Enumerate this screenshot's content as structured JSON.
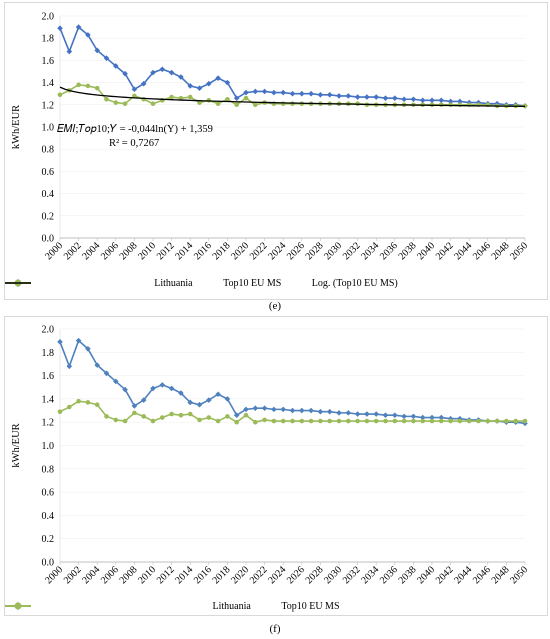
{
  "chart_data": [
    {
      "type": "line",
      "panel_id": "e",
      "title": "",
      "xlabel": "",
      "ylabel": "kWh/EUR",
      "ylim": [
        0.0,
        2.0
      ],
      "y_ticks": [
        "0.0",
        "0.2",
        "0.4",
        "0.6",
        "0.8",
        "1.0",
        "1.2",
        "1.4",
        "1.6",
        "1.8",
        "2.0"
      ],
      "x_tick_labels": [
        "2000",
        "2002",
        "2004",
        "2006",
        "2008",
        "2010",
        "2012",
        "2014",
        "2016",
        "2018",
        "2020",
        "2022",
        "2024",
        "2026",
        "2028",
        "2030",
        "2032",
        "2034",
        "2036",
        "2038",
        "2040",
        "2042",
        "2044",
        "2046",
        "2048",
        "2050"
      ],
      "x": [
        2000,
        2001,
        2002,
        2003,
        2004,
        2005,
        2006,
        2007,
        2008,
        2009,
        2010,
        2011,
        2012,
        2013,
        2014,
        2015,
        2016,
        2017,
        2018,
        2019,
        2020,
        2021,
        2022,
        2023,
        2024,
        2025,
        2026,
        2027,
        2028,
        2029,
        2030,
        2031,
        2032,
        2033,
        2034,
        2035,
        2036,
        2037,
        2038,
        2039,
        2040,
        2041,
        2042,
        2043,
        2044,
        2045,
        2046,
        2047,
        2048,
        2049,
        2050
      ],
      "series": [
        {
          "name": "Lithuania",
          "color": "#4472c4",
          "marker": "diamond",
          "values": [
            1.89,
            1.68,
            1.9,
            1.83,
            1.69,
            1.62,
            1.55,
            1.48,
            1.34,
            1.39,
            1.49,
            1.52,
            1.49,
            1.45,
            1.37,
            1.35,
            1.39,
            1.44,
            1.4,
            1.26,
            1.31,
            1.32,
            1.32,
            1.31,
            1.31,
            1.3,
            1.3,
            1.3,
            1.29,
            1.29,
            1.28,
            1.28,
            1.27,
            1.27,
            1.27,
            1.26,
            1.26,
            1.25,
            1.25,
            1.24,
            1.24,
            1.24,
            1.23,
            1.23,
            1.22,
            1.22,
            1.21,
            1.21,
            1.2,
            1.2,
            1.19
          ]
        },
        {
          "name": "Top10 EU MS",
          "color": "#9bbb59",
          "marker": "circle",
          "values": [
            1.29,
            1.33,
            1.38,
            1.37,
            1.35,
            1.25,
            1.22,
            1.21,
            1.28,
            1.25,
            1.21,
            1.24,
            1.27,
            1.26,
            1.27,
            1.22,
            1.24,
            1.21,
            1.25,
            1.2,
            1.26,
            1.2,
            1.22,
            1.21,
            1.21,
            1.21,
            1.21,
            1.21,
            1.21,
            1.21,
            1.21,
            1.21,
            1.21,
            1.2,
            1.2,
            1.2,
            1.2,
            1.2,
            1.2,
            1.2,
            1.2,
            1.2,
            1.2,
            1.2,
            1.2,
            1.2,
            1.2,
            1.19,
            1.19,
            1.19,
            1.19
          ]
        },
        {
          "name": "Log. (Top10 EU MS)",
          "color": "#000000",
          "marker": "none",
          "trendline": {
            "a": -0.044,
            "b": 1.359
          }
        }
      ],
      "annotation_equation": "𝐸𝑀𝐼;𝑇𝑜𝑝10;𝑌 = -0,044ln(Y) + 1,359",
      "annotation_r2": "R² = 0,7267",
      "legend_position": "bottom"
    },
    {
      "type": "line",
      "panel_id": "f",
      "title": "",
      "xlabel": "",
      "ylabel": "kWh/EUR",
      "ylim": [
        0.0,
        2.0
      ],
      "y_ticks": [
        "0.0",
        "0.2",
        "0.4",
        "0.6",
        "0.8",
        "1.0",
        "1.2",
        "1.4",
        "1.6",
        "1.8",
        "2.0"
      ],
      "x_tick_labels": [
        "2000",
        "2002",
        "2004",
        "2006",
        "2008",
        "2010",
        "2012",
        "2014",
        "2016",
        "2018",
        "2020",
        "2022",
        "2024",
        "2026",
        "2028",
        "2030",
        "2032",
        "2034",
        "2036",
        "2038",
        "2040",
        "2042",
        "2044",
        "2046",
        "2048",
        "2050"
      ],
      "x": [
        2000,
        2001,
        2002,
        2003,
        2004,
        2005,
        2006,
        2007,
        2008,
        2009,
        2010,
        2011,
        2012,
        2013,
        2014,
        2015,
        2016,
        2017,
        2018,
        2019,
        2020,
        2021,
        2022,
        2023,
        2024,
        2025,
        2026,
        2027,
        2028,
        2029,
        2030,
        2031,
        2032,
        2033,
        2034,
        2035,
        2036,
        2037,
        2038,
        2039,
        2040,
        2041,
        2042,
        2043,
        2044,
        2045,
        2046,
        2047,
        2048,
        2049,
        2050
      ],
      "series": [
        {
          "name": "Lithuania",
          "color": "#4e81bd",
          "marker": "diamond",
          "values": [
            1.89,
            1.68,
            1.9,
            1.83,
            1.69,
            1.62,
            1.55,
            1.48,
            1.34,
            1.39,
            1.49,
            1.52,
            1.49,
            1.45,
            1.37,
            1.35,
            1.39,
            1.44,
            1.4,
            1.26,
            1.31,
            1.32,
            1.32,
            1.31,
            1.31,
            1.3,
            1.3,
            1.3,
            1.29,
            1.29,
            1.28,
            1.28,
            1.27,
            1.27,
            1.27,
            1.26,
            1.26,
            1.25,
            1.25,
            1.24,
            1.24,
            1.24,
            1.23,
            1.23,
            1.22,
            1.22,
            1.21,
            1.21,
            1.2,
            1.2,
            1.19
          ]
        },
        {
          "name": "Top10 EU MS",
          "color": "#9bbb59",
          "marker": "circle",
          "values": [
            1.29,
            1.33,
            1.38,
            1.37,
            1.35,
            1.25,
            1.22,
            1.21,
            1.28,
            1.25,
            1.21,
            1.24,
            1.27,
            1.26,
            1.27,
            1.22,
            1.24,
            1.21,
            1.25,
            1.2,
            1.26,
            1.2,
            1.22,
            1.21,
            1.21,
            1.21,
            1.21,
            1.21,
            1.21,
            1.21,
            1.21,
            1.21,
            1.21,
            1.21,
            1.21,
            1.21,
            1.21,
            1.21,
            1.21,
            1.21,
            1.21,
            1.21,
            1.21,
            1.21,
            1.21,
            1.21,
            1.21,
            1.21,
            1.21,
            1.21,
            1.21
          ]
        }
      ],
      "legend_position": "bottom"
    }
  ],
  "captions": {
    "e": "(e)",
    "f": "(f)"
  }
}
